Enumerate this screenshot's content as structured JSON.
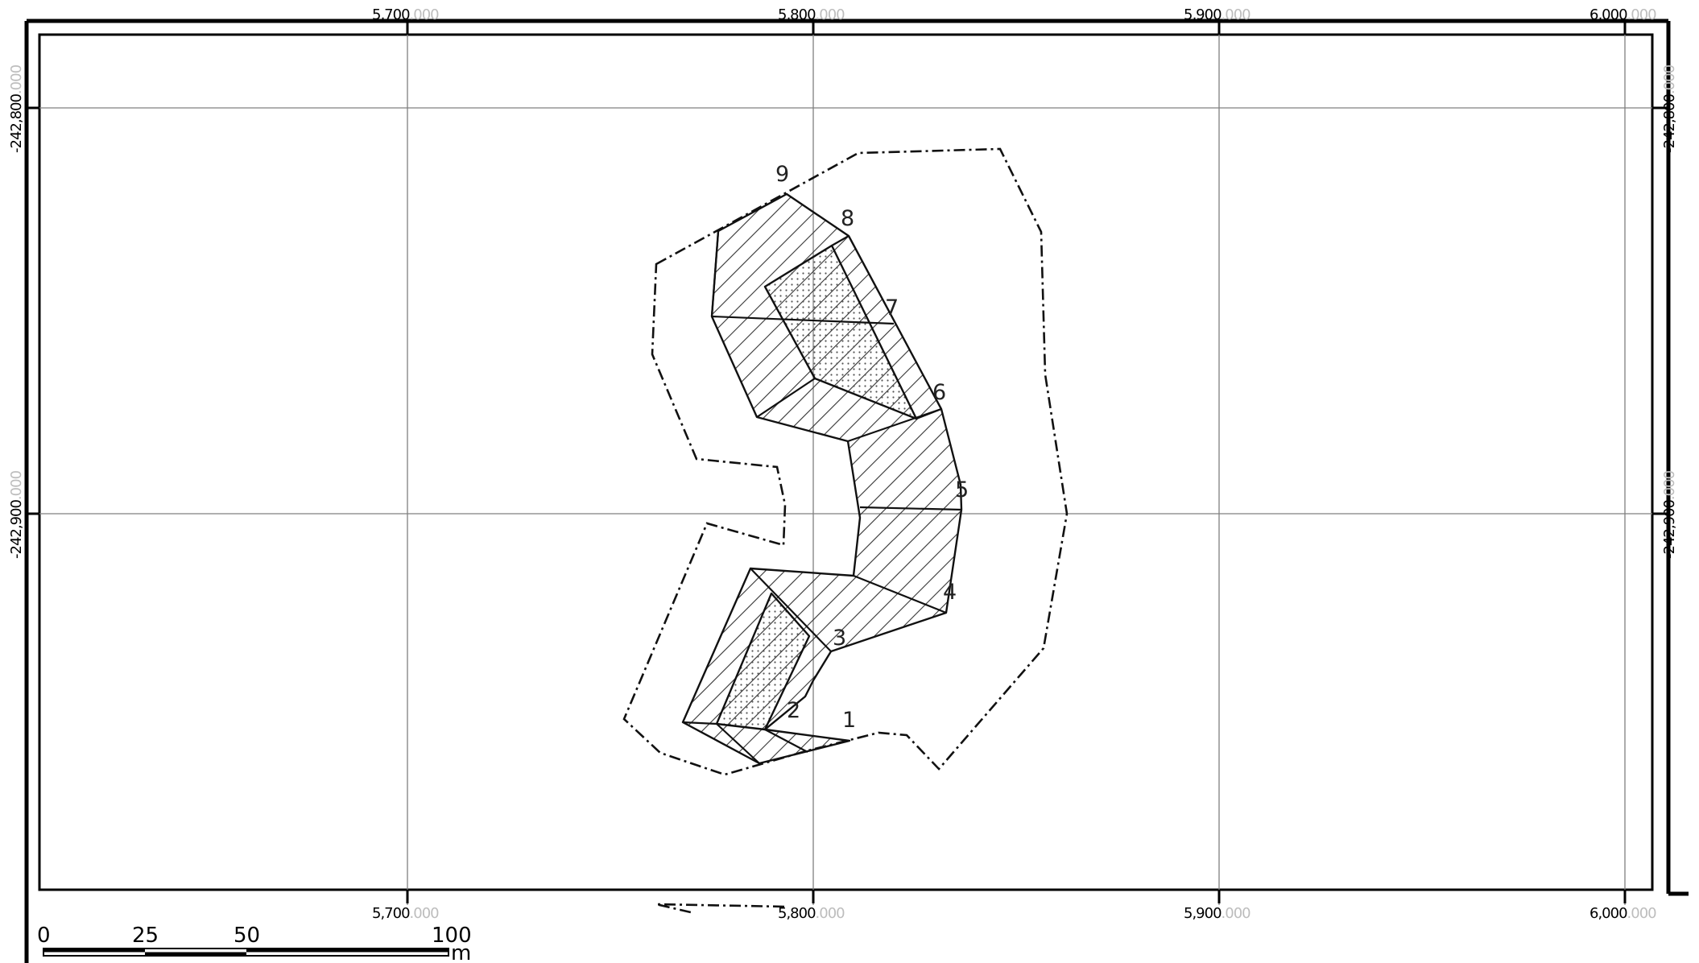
{
  "map": {
    "grid_x_labels": [
      {
        "main": "5,700",
        "dec": ".000"
      },
      {
        "main": "5,800",
        "dec": ".000"
      },
      {
        "main": "5,900",
        "dec": ".000"
      },
      {
        "main": "6,000",
        "dec": ".000"
      }
    ],
    "grid_y_labels": [
      {
        "main": "-242,800",
        "dec": ".000"
      },
      {
        "main": "-242,900",
        "dec": ".000"
      }
    ],
    "vertex_labels": [
      "1",
      "2",
      "3",
      "4",
      "5",
      "6",
      "7",
      "8",
      "9"
    ],
    "scale_bar": {
      "ticks": [
        "0",
        "25",
        "50",
        "100"
      ],
      "unit": "m"
    },
    "colors": {
      "frame": "#000000",
      "grid_line": "#808080",
      "hatch": "#333333",
      "stipple": "#555555",
      "label_decimal": "#bdbdbd"
    },
    "icons": {
      "hatch_fill": "diagonal-hatch-pattern",
      "stipple_fill": "dot-stipple-pattern"
    }
  }
}
